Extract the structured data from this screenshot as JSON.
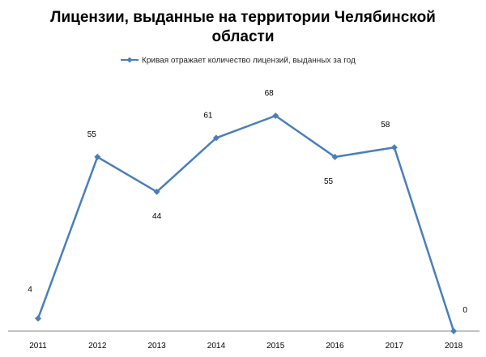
{
  "chart_data": {
    "type": "line",
    "title_lines": [
      "Лицензии, выданные на территории Челябинской",
      "области"
    ],
    "categories": [
      "2011",
      "2012",
      "2013",
      "2014",
      "2015",
      "2016",
      "2017",
      "2018"
    ],
    "series": [
      {
        "name": "Кривая отражает количество лицензий, выданных за год",
        "values": [
          4,
          55,
          44,
          61,
          68,
          55,
          58,
          0
        ],
        "labels": [
          "4",
          "55",
          "44",
          "61",
          "68",
          "55",
          "58",
          "0"
        ],
        "label_positions": [
          "above",
          "above",
          "below",
          "above",
          "above",
          "below",
          "above",
          "above"
        ]
      }
    ],
    "ylim": [
      0,
      68
    ],
    "grid": false,
    "legend_position": "top",
    "colors": {
      "line": "#4a7ebb",
      "marker": "#4a7ebb",
      "axis": "#868686"
    }
  }
}
